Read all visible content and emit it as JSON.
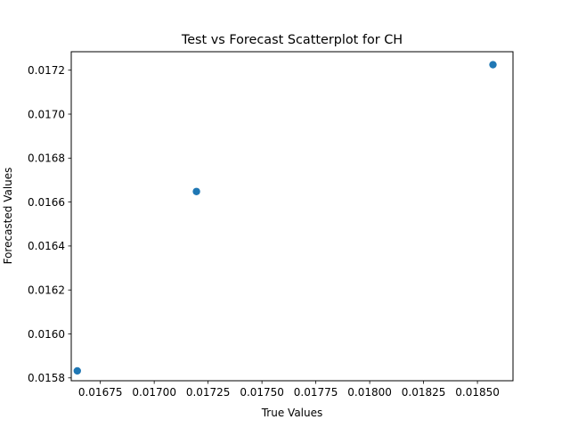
{
  "chart_data": {
    "type": "scatter",
    "title": "Test vs Forecast Scatterplot for CH",
    "xlabel": "True Values",
    "ylabel": "Forecasted Values",
    "xlim": [
      0.016615,
      0.018665
    ],
    "ylim": [
      0.015787,
      0.017284
    ],
    "x_ticks": [
      0.01675,
      0.017,
      0.01725,
      0.0175,
      0.01775,
      0.018,
      0.01825,
      0.0185
    ],
    "x_tick_labels": [
      "0.01675",
      "0.01700",
      "0.01725",
      "0.01750",
      "0.01775",
      "0.01800",
      "0.01825",
      "0.01850"
    ],
    "y_ticks": [
      0.0158,
      0.016,
      0.0162,
      0.0164,
      0.0166,
      0.0168,
      0.017,
      0.0172
    ],
    "y_tick_labels": [
      "0.0158",
      "0.0160",
      "0.0162",
      "0.0164",
      "0.0166",
      "0.0168",
      "0.0170",
      "0.0172"
    ],
    "grid": false,
    "marker_color": "#1f77b4",
    "series": [
      {
        "name": "CH",
        "x": [
          0.016643,
          0.017196,
          0.018572
        ],
        "y": [
          0.015832,
          0.016648,
          0.017225
        ]
      }
    ]
  }
}
